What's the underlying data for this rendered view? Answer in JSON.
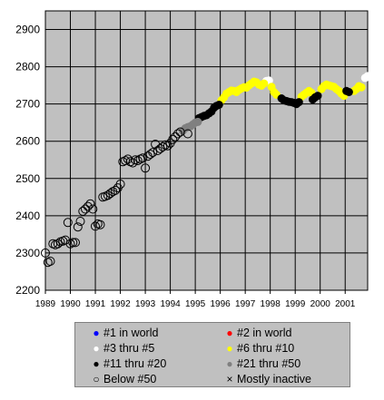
{
  "chart_data": {
    "type": "scatter",
    "title": "",
    "xlabel": "",
    "ylabel": "",
    "xlim": [
      1989,
      2001.9
    ],
    "ylim": [
      2200,
      2950
    ],
    "yticks": [
      "2200",
      "2300",
      "2400",
      "2500",
      "2600",
      "2700",
      "2800",
      "2900"
    ],
    "xticks": [
      "1989",
      "1990",
      "1991",
      "1992",
      "1993",
      "1994",
      "1995",
      "1996",
      "1997",
      "1998",
      "1999",
      "2000",
      "2001"
    ],
    "grid": true,
    "background": "#c0c0c0",
    "series": [
      {
        "name": "#3 thru #5",
        "color": "#ffffff",
        "marker": "filled",
        "points": [
          [
            1997.85,
            2762
          ],
          [
            1997.95,
            2763
          ],
          [
            2001.8,
            2770
          ],
          [
            2001.9,
            2775
          ]
        ]
      },
      {
        "name": "#6 thru #10",
        "color": "#ffff00",
        "marker": "filled",
        "points": [
          [
            1996.05,
            2710
          ],
          [
            1996.15,
            2718
          ],
          [
            1996.25,
            2728
          ],
          [
            1996.35,
            2732
          ],
          [
            1996.45,
            2736
          ],
          [
            1996.55,
            2735
          ],
          [
            1996.65,
            2732
          ],
          [
            1996.75,
            2738
          ],
          [
            1996.85,
            2742
          ],
          [
            1996.95,
            2745
          ],
          [
            1997.05,
            2744
          ],
          [
            1997.15,
            2750
          ],
          [
            1997.25,
            2755
          ],
          [
            1997.35,
            2760
          ],
          [
            1997.45,
            2758
          ],
          [
            1997.55,
            2752
          ],
          [
            1997.65,
            2749
          ],
          [
            1997.75,
            2755
          ],
          [
            1998.05,
            2746
          ],
          [
            1998.15,
            2732
          ],
          [
            1998.25,
            2725
          ],
          [
            1999.25,
            2720
          ],
          [
            1999.35,
            2725
          ],
          [
            1999.45,
            2730
          ],
          [
            1999.55,
            2735
          ],
          [
            1999.65,
            2730
          ],
          [
            2000.05,
            2740
          ],
          [
            2000.15,
            2748
          ],
          [
            2000.25,
            2752
          ],
          [
            2000.35,
            2750
          ],
          [
            2000.45,
            2748
          ],
          [
            2000.55,
            2746
          ],
          [
            2000.65,
            2740
          ],
          [
            2000.75,
            2735
          ],
          [
            2000.85,
            2728
          ],
          [
            2000.95,
            2722
          ],
          [
            2001.35,
            2735
          ],
          [
            2001.45,
            2740
          ],
          [
            2001.55,
            2748
          ],
          [
            2001.65,
            2745
          ]
        ]
      },
      {
        "name": "#11 thru #20",
        "color": "#000000",
        "marker": "filled",
        "points": [
          [
            1995.15,
            2662
          ],
          [
            1995.25,
            2665
          ],
          [
            1995.35,
            2668
          ],
          [
            1995.45,
            2670
          ],
          [
            1995.55,
            2675
          ],
          [
            1995.65,
            2680
          ],
          [
            1995.75,
            2690
          ],
          [
            1995.85,
            2695
          ],
          [
            1995.95,
            2698
          ],
          [
            1998.45,
            2715
          ],
          [
            1998.55,
            2710
          ],
          [
            1998.65,
            2708
          ],
          [
            1998.75,
            2706
          ],
          [
            1998.85,
            2705
          ],
          [
            1998.95,
            2703
          ],
          [
            1999.05,
            2700
          ],
          [
            1999.15,
            2705
          ],
          [
            1999.7,
            2712
          ],
          [
            1999.8,
            2718
          ],
          [
            1999.9,
            2722
          ],
          [
            2001.05,
            2735
          ],
          [
            2001.15,
            2732
          ]
        ]
      },
      {
        "name": "#21 thru #50",
        "color": "#808080",
        "marker": "filled",
        "points": [
          [
            1994.5,
            2628
          ],
          [
            1994.6,
            2635
          ],
          [
            1994.7,
            2638
          ],
          [
            1994.8,
            2640
          ],
          [
            1994.9,
            2645
          ],
          [
            1995.0,
            2650
          ],
          [
            1995.1,
            2652
          ]
        ]
      },
      {
        "name": "Below #50",
        "color": "#000000",
        "marker": "hollow",
        "points": [
          [
            1989.0,
            2300
          ],
          [
            1989.1,
            2275
          ],
          [
            1989.2,
            2278
          ],
          [
            1989.3,
            2325
          ],
          [
            1989.4,
            2322
          ],
          [
            1989.5,
            2325
          ],
          [
            1989.6,
            2330
          ],
          [
            1989.7,
            2332
          ],
          [
            1989.8,
            2335
          ],
          [
            1989.9,
            2382
          ],
          [
            1990.0,
            2325
          ],
          [
            1990.1,
            2328
          ],
          [
            1990.2,
            2328
          ],
          [
            1990.3,
            2370
          ],
          [
            1990.4,
            2385
          ],
          [
            1990.5,
            2412
          ],
          [
            1990.6,
            2418
          ],
          [
            1990.7,
            2425
          ],
          [
            1990.8,
            2432
          ],
          [
            1990.9,
            2418
          ],
          [
            1991.0,
            2372
          ],
          [
            1991.1,
            2378
          ],
          [
            1991.2,
            2376
          ],
          [
            1991.3,
            2450
          ],
          [
            1991.4,
            2452
          ],
          [
            1991.5,
            2455
          ],
          [
            1991.6,
            2460
          ],
          [
            1991.7,
            2465
          ],
          [
            1991.8,
            2468
          ],
          [
            1991.9,
            2475
          ],
          [
            1992.0,
            2485
          ],
          [
            1992.1,
            2545
          ],
          [
            1992.2,
            2548
          ],
          [
            1992.3,
            2552
          ],
          [
            1992.4,
            2545
          ],
          [
            1992.5,
            2542
          ],
          [
            1992.6,
            2550
          ],
          [
            1992.7,
            2548
          ],
          [
            1992.8,
            2552
          ],
          [
            1992.9,
            2555
          ],
          [
            1993.0,
            2528
          ],
          [
            1993.1,
            2560
          ],
          [
            1993.2,
            2565
          ],
          [
            1993.3,
            2570
          ],
          [
            1993.4,
            2592
          ],
          [
            1993.5,
            2575
          ],
          [
            1993.6,
            2580
          ],
          [
            1993.7,
            2585
          ],
          [
            1993.8,
            2590
          ],
          [
            1993.9,
            2588
          ],
          [
            1994.0,
            2595
          ],
          [
            1994.1,
            2605
          ],
          [
            1994.2,
            2612
          ],
          [
            1994.3,
            2620
          ],
          [
            1994.4,
            2625
          ],
          [
            1994.7,
            2620
          ]
        ]
      }
    ],
    "legend": {
      "placement": "bottom",
      "items": [
        {
          "label": "#1 in world",
          "color": "#0000ff",
          "symbol": "●"
        },
        {
          "label": "#2 in world",
          "color": "#ff0000",
          "symbol": "●"
        },
        {
          "label": "#3 thru #5",
          "color": "#ffffff",
          "symbol": "●"
        },
        {
          "label": "#6 thru #10",
          "color": "#ffff00",
          "symbol": "●"
        },
        {
          "label": "#11 thru #20",
          "color": "#000000",
          "symbol": "●"
        },
        {
          "label": "#21 thru #50",
          "color": "#808080",
          "symbol": "●"
        },
        {
          "label": "Below #50",
          "color": "#000000",
          "symbol": "○"
        },
        {
          "label": "Mostly inactive",
          "color": "#000000",
          "symbol": "×"
        }
      ]
    }
  }
}
